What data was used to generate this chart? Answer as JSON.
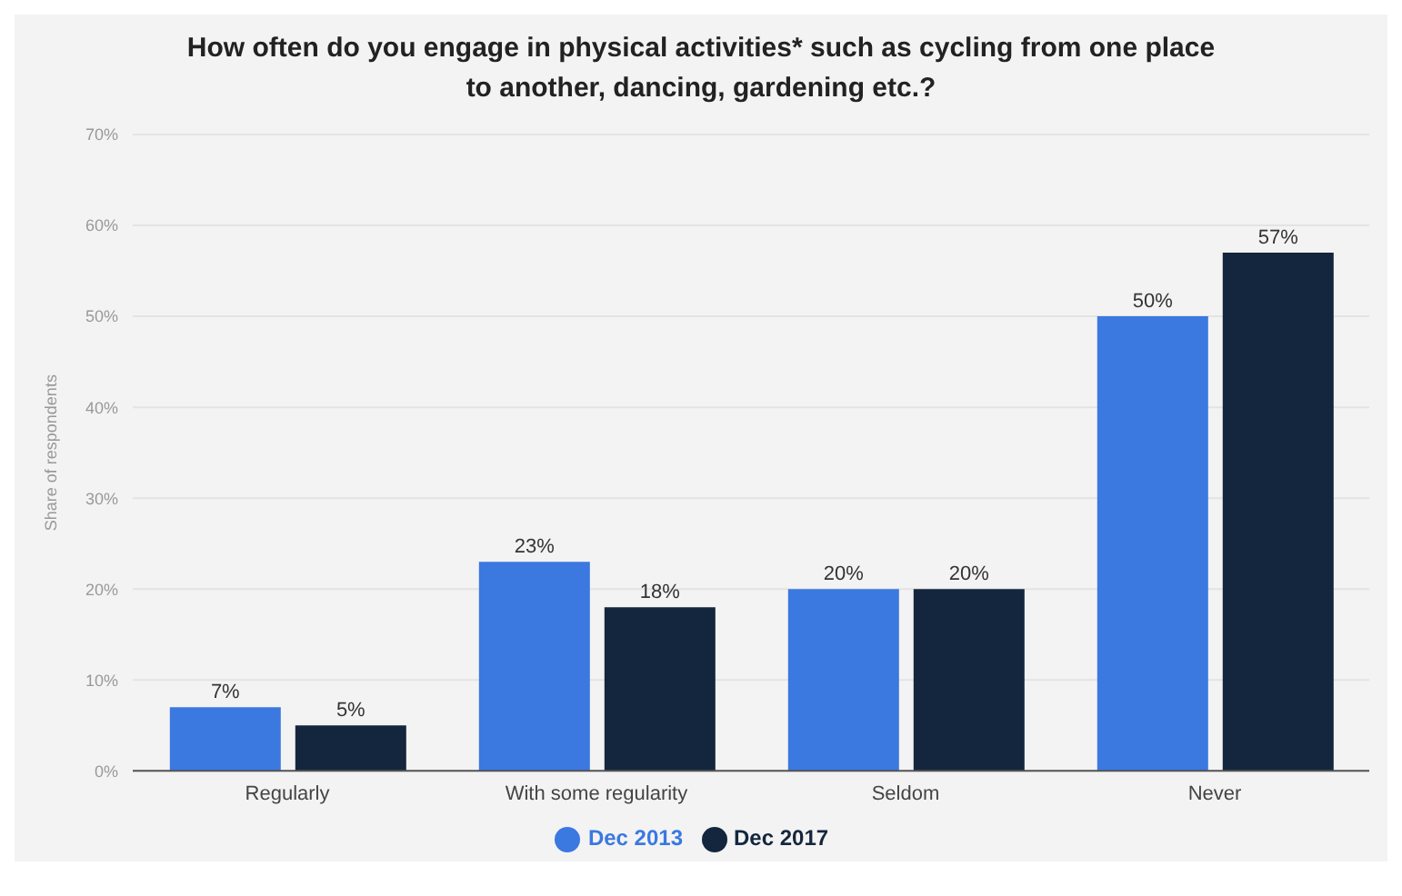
{
  "chart_data": {
    "type": "bar",
    "title": "How often do you engage in physical activities* such as cycling from one place to another, dancing, gardening etc.?",
    "ylabel": "Share of respondents",
    "categories": [
      "Regularly",
      "With some regularity",
      "Seldom",
      "Never"
    ],
    "series": [
      {
        "name": "Dec 2013",
        "color": "#3b78e0",
        "values": [
          7,
          23,
          20,
          50
        ],
        "value_labels": [
          "7%",
          "23%",
          "20%",
          "50%"
        ]
      },
      {
        "name": "Dec 2017",
        "color": "#14263d",
        "values": [
          5,
          18,
          20,
          57
        ],
        "value_labels": [
          "5%",
          "18%",
          "20%",
          "57%"
        ]
      }
    ],
    "ylim": [
      0,
      70
    ],
    "yticks": [
      {
        "value": 0,
        "label": "0%"
      },
      {
        "value": 10,
        "label": "10%"
      },
      {
        "value": 20,
        "label": "20%"
      },
      {
        "value": 30,
        "label": "30%"
      },
      {
        "value": 40,
        "label": "40%"
      },
      {
        "value": 50,
        "label": "50%"
      },
      {
        "value": 60,
        "label": "60%"
      },
      {
        "value": 70,
        "label": "70%"
      }
    ],
    "grid": "y",
    "legend": "bottom"
  }
}
